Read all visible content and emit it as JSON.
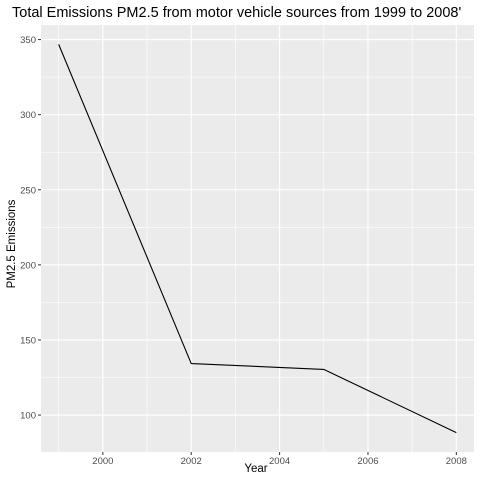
{
  "chart_data": {
    "type": "line",
    "title": "Total Emissions PM2.5 from motor vehicle sources from 1999 to 2008'",
    "xlabel": "Year",
    "ylabel": "PM2.5 Emissions",
    "x": [
      1999,
      2002,
      2005,
      2008
    ],
    "series": [
      {
        "values": [
          346.8,
          134.3,
          130.4,
          88.3
        ]
      }
    ],
    "xlim": [
      1998.6,
      2008.4
    ],
    "ylim": [
      75.4,
      359.7
    ],
    "x_ticks": [
      2000,
      2002,
      2004,
      2006,
      2008
    ],
    "y_ticks": [
      100,
      150,
      200,
      250,
      300,
      350
    ],
    "grid": true,
    "legend": "none",
    "colors": {
      "panel": "#EBEBEB",
      "grid": "#FFFFFF",
      "line": "#000000",
      "tick_label": "#4D4D4D"
    }
  }
}
